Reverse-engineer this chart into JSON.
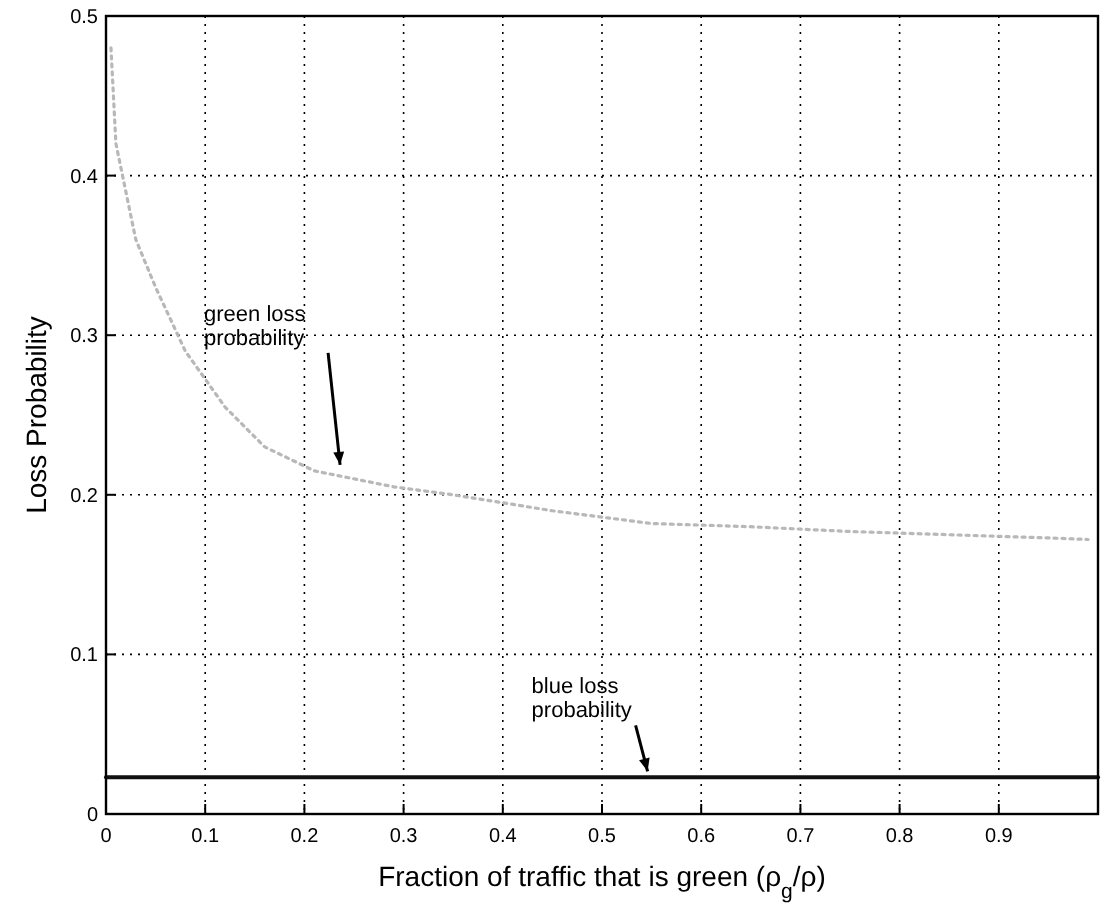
{
  "chart_data": {
    "type": "line",
    "xlabel": "Fraction of traffic that is green (ρ$_{g}$/ρ)",
    "ylabel": "Loss Probability",
    "xlim": [
      0,
      1
    ],
    "ylim": [
      0,
      0.5
    ],
    "xticks": [
      0,
      0.1,
      0.2,
      0.3,
      0.4,
      0.5,
      0.6,
      0.7,
      0.8,
      0.9,
      {
        "value": 1,
        "label": null
      }
    ],
    "yticks": [
      0,
      0.1,
      0.2,
      0.3,
      0.4,
      0.5
    ],
    "grid": true,
    "series": [
      {
        "color": "#b8b8b8",
        "line_style": "dotted",
        "x": [
          0.005,
          0.01,
          0.02,
          0.03,
          0.05,
          0.08,
          0.12,
          0.16,
          0.21,
          0.29,
          0.35,
          0.45,
          0.55,
          0.65,
          0.75,
          0.85,
          0.95,
          0.99
        ],
        "values": [
          0.48,
          0.42,
          0.39,
          0.36,
          0.33,
          0.29,
          0.255,
          0.23,
          0.215,
          0.205,
          0.2,
          0.19,
          0.182,
          0.18,
          0.177,
          0.175,
          0.173,
          0.172
        ]
      },
      {
        "color": "#111111",
        "line_style": "solid",
        "x": [
          0,
          1
        ],
        "values": [
          0.023,
          0.023
        ]
      }
    ],
    "annotations": [
      {
        "text": "green loss probability",
        "x": 0.24,
        "y": 0.215
      },
      {
        "text": "blue loss probability",
        "x": 0.55,
        "y": 0.023
      }
    ]
  }
}
